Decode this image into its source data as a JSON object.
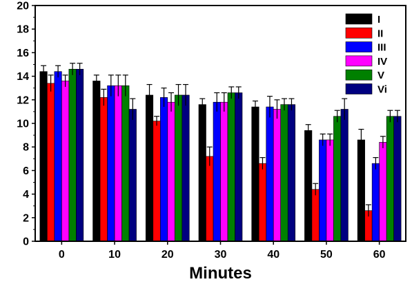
{
  "chart_data": {
    "type": "bar",
    "title": "",
    "xlabel": "Minutes",
    "ylabel": "",
    "categories": [
      "0",
      "10",
      "20",
      "30",
      "40",
      "50",
      "60"
    ],
    "ylim": [
      0,
      20
    ],
    "yticks": [
      "0",
      "2",
      "4",
      "6",
      "8",
      "10",
      "12",
      "14",
      "16",
      "18",
      "20"
    ],
    "legend_position": "top-right",
    "series": [
      {
        "name": "I",
        "color": "#000000",
        "values": [
          14.4,
          13.6,
          12.4,
          11.6,
          11.4,
          9.4,
          8.6
        ],
        "errors": [
          0.5,
          0.5,
          0.9,
          0.5,
          0.5,
          0.5,
          0.9
        ]
      },
      {
        "name": "II",
        "color": "#ff0000",
        "values": [
          13.4,
          12.2,
          10.2,
          7.2,
          6.6,
          4.4,
          2.6
        ],
        "errors": [
          0.7,
          0.7,
          0.4,
          0.8,
          0.5,
          0.5,
          0.5
        ]
      },
      {
        "name": "III",
        "color": "#0000ff",
        "values": [
          14.4,
          13.2,
          12.2,
          11.8,
          11.4,
          8.6,
          6.6
        ],
        "errors": [
          0.5,
          0.9,
          0.8,
          0.8,
          0.9,
          0.5,
          0.5
        ]
      },
      {
        "name": "IV",
        "color": "#ff00ff",
        "values": [
          13.6,
          13.2,
          11.8,
          11.8,
          11.2,
          8.6,
          8.4
        ],
        "errors": [
          0.5,
          0.9,
          0.8,
          0.8,
          0.8,
          0.5,
          0.5
        ]
      },
      {
        "name": "V",
        "color": "#008000",
        "values": [
          14.6,
          13.2,
          12.4,
          12.6,
          11.6,
          10.6,
          10.6
        ],
        "errors": [
          0.5,
          0.9,
          0.9,
          0.5,
          0.5,
          0.5,
          0.5
        ]
      },
      {
        "name": "Vi",
        "color": "#000080",
        "values": [
          14.6,
          11.2,
          12.4,
          12.6,
          11.6,
          11.2,
          10.6
        ],
        "errors": [
          0.5,
          0.9,
          0.9,
          0.5,
          0.5,
          0.9,
          0.5
        ]
      }
    ]
  }
}
